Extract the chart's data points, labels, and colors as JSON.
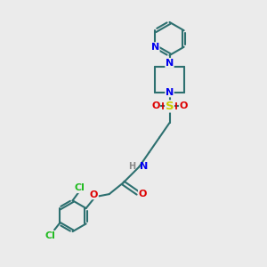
{
  "bg_color": "#ebebeb",
  "bond_color": "#2d7070",
  "N_color": "#0000ee",
  "O_color": "#dd0000",
  "S_color": "#cccc00",
  "Cl_color": "#22bb22",
  "H_color": "#888888",
  "lw": 1.5,
  "fs": 7.5,
  "xlim": [
    0,
    10
  ],
  "ylim": [
    0,
    10
  ]
}
